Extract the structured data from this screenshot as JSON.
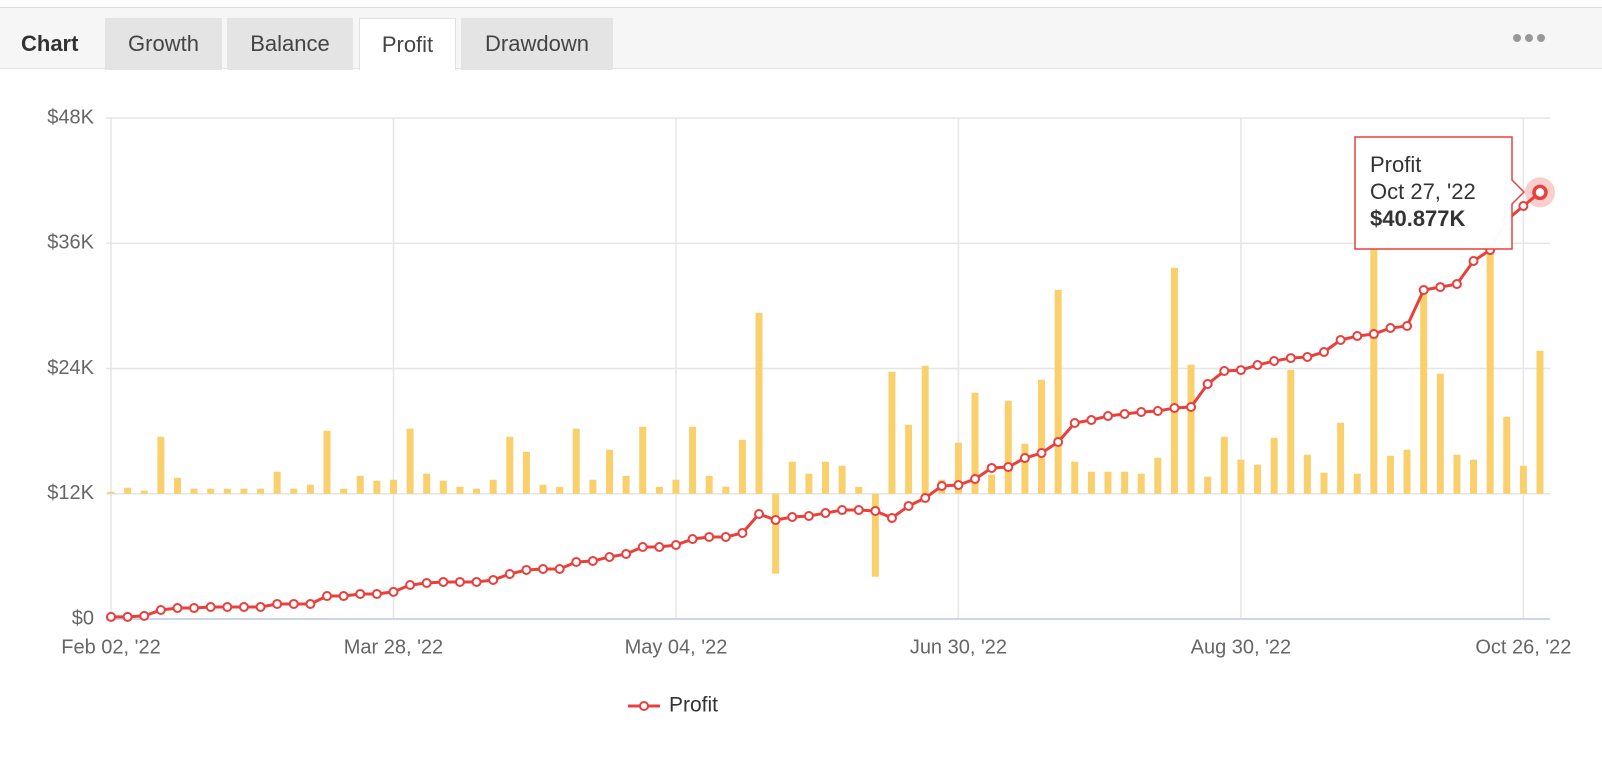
{
  "tabs": {
    "title": "Chart",
    "items": [
      "Growth",
      "Balance",
      "Profit",
      "Drawdown"
    ],
    "active": 2
  },
  "chart_data": {
    "type": "line",
    "categories": [
      "Feb 02, '22",
      null,
      null,
      null,
      null,
      null,
      null,
      null,
      null,
      null,
      null,
      null,
      null,
      null,
      null,
      null,
      null,
      "Mar 28, '22",
      null,
      null,
      null,
      null,
      null,
      null,
      null,
      null,
      null,
      null,
      null,
      null,
      null,
      null,
      null,
      null,
      "May 04, '22",
      null,
      null,
      null,
      null,
      null,
      null,
      null,
      null,
      null,
      null,
      null,
      null,
      null,
      null,
      null,
      null,
      "Jun 30, '22",
      null,
      null,
      null,
      null,
      null,
      null,
      null,
      null,
      null,
      null,
      null,
      null,
      null,
      null,
      null,
      null,
      "Aug 30, '22",
      null,
      null,
      null,
      null,
      null,
      null,
      null,
      null,
      null,
      null,
      null,
      null,
      null,
      null,
      null,
      null,
      "Oct 26, '22",
      null
    ],
    "series": [
      {
        "name": "Profit",
        "type": "line",
        "color": "#e8413d",
        "values": [
          200,
          200,
          300,
          860,
          1050,
          1050,
          1150,
          1150,
          1150,
          1150,
          1440,
          1440,
          1440,
          2200,
          2200,
          2400,
          2400,
          2600,
          3260,
          3450,
          3550,
          3550,
          3550,
          3740,
          4310,
          4700,
          4790,
          4790,
          5460,
          5560,
          5940,
          6230,
          6900,
          6900,
          7090,
          7660,
          7860,
          7860,
          8240,
          10060,
          9480,
          9770,
          9870,
          10150,
          10440,
          10440,
          10350,
          9680,
          10830,
          11590,
          12740,
          12840,
          13410,
          14470,
          14560,
          15420,
          15900,
          16960,
          18780,
          19060,
          19450,
          19640,
          19830,
          19930,
          20210,
          20310,
          22510,
          23760,
          23850,
          24330,
          24720,
          25000,
          25100,
          25580,
          26730,
          27110,
          27300,
          27880,
          28070,
          31520,
          31800,
          32090,
          34300,
          35350,
          38220,
          39570,
          40877
        ]
      },
      {
        "type": "bar",
        "axis": "y2",
        "color": "#f9d06b",
        "values": [
          190,
          575,
          290,
          5460,
          1530,
          480,
          480,
          480,
          480,
          480,
          2110,
          480,
          860,
          6040,
          480,
          1720,
          1250,
          1340,
          6230,
          1920,
          1250,
          670,
          480,
          1340,
          5460,
          4020,
          860,
          670,
          6230,
          1340,
          4220,
          1720,
          6420,
          670,
          1340,
          6420,
          1720,
          670,
          5170,
          17340,
          -7660,
          3070,
          1920,
          3070,
          2680,
          670,
          -7950,
          11690,
          6610,
          12260,
          1340,
          4890,
          9680,
          1820,
          8910,
          4790,
          10920,
          19540,
          3070,
          2110,
          2110,
          2110,
          1920,
          3450,
          21650,
          12360,
          1630,
          5460,
          3260,
          2780,
          5360,
          11880,
          3740,
          2010,
          6800,
          1920,
          23850,
          3640,
          4220,
          19930,
          11500,
          3740,
          3260,
          23850,
          7380,
          2680,
          13700
        ]
      }
    ],
    "ylim": [
      0,
      48000
    ],
    "yticks": [
      {
        "value": 0,
        "label": "$0"
      },
      {
        "value": 12000,
        "label": "$12K"
      },
      {
        "value": 24000,
        "label": "$24K"
      },
      {
        "value": 36000,
        "label": "$36K"
      },
      {
        "value": 48000,
        "label": "$48K"
      }
    ],
    "y2lim": [
      -12000,
      36000
    ],
    "grid": true,
    "legend": "bottom",
    "tooltip": {
      "x": "Oct 27, '22",
      "value": 40877,
      "label": "$40.877K"
    }
  }
}
